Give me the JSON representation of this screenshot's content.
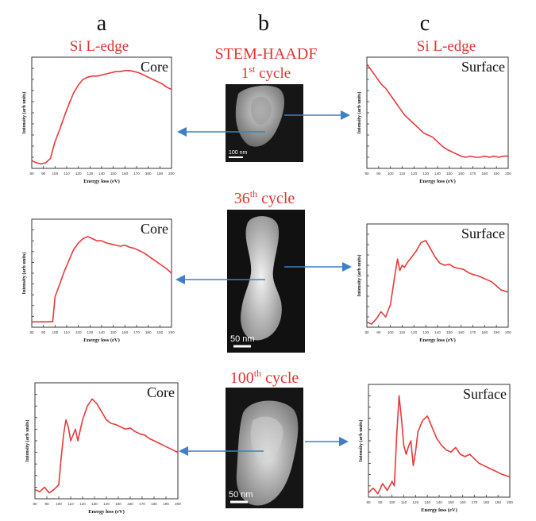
{
  "header": {
    "col_a_letter": "a",
    "col_b_letter": "b",
    "col_c_letter": "c",
    "col_a_title": "Si L-edge",
    "col_b_title": "STEM-HAADF",
    "col_c_title": "Si L-edge"
  },
  "cycles": [
    {
      "number": "1",
      "suffix": "st",
      "label": " cycle",
      "scale_text": "100 nm"
    },
    {
      "number": "36",
      "suffix": "th",
      "label": " cycle",
      "scale_text": "50 nm"
    },
    {
      "number": "100",
      "suffix": "th",
      "label": " cycle",
      "scale_text": "50 nm"
    }
  ],
  "colors": {
    "spectrum": "#e8393a",
    "title_red": "#e23232",
    "arrow": "#3f7fc8",
    "axis": "#333333"
  },
  "chart_data": [
    {
      "type": "line",
      "panel": "a1",
      "title": "Core",
      "xlabel": "Energy loss (eV)",
      "ylabel": "Intensity (arb units)",
      "xlim": [
        80,
        200
      ],
      "ylim": [
        0,
        100
      ],
      "x_ticks": [
        80,
        90,
        100,
        110,
        120,
        130,
        140,
        150,
        160,
        170,
        180,
        190,
        200
      ],
      "x": [
        80,
        84,
        88,
        92,
        96,
        100,
        104,
        108,
        112,
        116,
        120,
        124,
        128,
        132,
        136,
        140,
        144,
        148,
        152,
        156,
        160,
        164,
        168,
        172,
        176,
        180,
        184,
        188,
        192,
        196,
        200
      ],
      "y": [
        7,
        5,
        4,
        5,
        9,
        24,
        35,
        47,
        58,
        68,
        75,
        80,
        82,
        83,
        83,
        84,
        85,
        86,
        87,
        87,
        88,
        88,
        87,
        86,
        84,
        82,
        80,
        78,
        76,
        73,
        71
      ]
    },
    {
      "type": "line",
      "panel": "c1",
      "title": "Surface",
      "xlabel": "Energy loss (eV)",
      "ylabel": "Intensity (arb units)",
      "xlim": [
        80,
        200
      ],
      "ylim": [
        0,
        100
      ],
      "x_ticks": [
        80,
        90,
        100,
        110,
        120,
        130,
        140,
        150,
        160,
        170,
        180,
        190,
        200
      ],
      "x": [
        80,
        84,
        88,
        92,
        96,
        100,
        104,
        108,
        112,
        116,
        120,
        124,
        128,
        132,
        136,
        140,
        144,
        148,
        152,
        156,
        160,
        164,
        168,
        172,
        176,
        180,
        184,
        188,
        192,
        196,
        200
      ],
      "y": [
        94,
        88,
        82,
        76,
        72,
        66,
        60,
        54,
        48,
        44,
        40,
        36,
        32,
        30,
        28,
        24,
        20,
        17,
        15,
        13,
        11,
        10,
        11,
        10,
        10,
        11,
        10,
        11,
        10,
        11,
        11
      ]
    },
    {
      "type": "line",
      "panel": "a2",
      "title": "Core",
      "xlabel": "Energy loss (eV)",
      "ylabel": "Intensity (arb units)",
      "xlim": [
        80,
        200
      ],
      "ylim": [
        0,
        100
      ],
      "x_ticks": [
        80,
        90,
        100,
        110,
        120,
        130,
        140,
        150,
        160,
        170,
        180,
        190,
        200
      ],
      "x": [
        80,
        84,
        88,
        92,
        96,
        98,
        100,
        104,
        108,
        112,
        116,
        120,
        124,
        128,
        132,
        136,
        140,
        144,
        148,
        152,
        156,
        160,
        164,
        168,
        172,
        176,
        180,
        184,
        188,
        192,
        196,
        200
      ],
      "y": [
        5,
        5,
        5,
        5,
        5,
        5,
        28,
        40,
        52,
        62,
        72,
        78,
        82,
        84,
        82,
        80,
        80,
        78,
        77,
        76,
        75,
        76,
        74,
        73,
        71,
        69,
        66,
        63,
        60,
        57,
        54,
        50
      ]
    },
    {
      "type": "line",
      "panel": "c2",
      "title": "Surface",
      "xlabel": "Energy loss (eV)",
      "ylabel": "Intensity (arb units)",
      "xlim": [
        80,
        200
      ],
      "ylim": [
        0,
        100
      ],
      "x_ticks": [
        80,
        90,
        100,
        110,
        120,
        130,
        140,
        150,
        160,
        170,
        180,
        190,
        200
      ],
      "x": [
        80,
        84,
        88,
        92,
        96,
        100,
        104,
        106,
        108,
        110,
        112,
        114,
        118,
        122,
        126,
        130,
        134,
        138,
        142,
        146,
        150,
        154,
        158,
        162,
        166,
        170,
        174,
        178,
        182,
        186,
        190,
        194,
        200
      ],
      "y": [
        5,
        3,
        8,
        15,
        10,
        22,
        52,
        66,
        55,
        60,
        58,
        62,
        68,
        74,
        82,
        84,
        76,
        68,
        62,
        60,
        61,
        58,
        57,
        56,
        53,
        51,
        50,
        48,
        46,
        44,
        40,
        36,
        34
      ]
    },
    {
      "type": "line",
      "panel": "a3",
      "title": "Core",
      "xlabel": "Energy loss (eV)",
      "ylabel": "Intensity (arb units)",
      "xlim": [
        80,
        200
      ],
      "ylim": [
        0,
        100
      ],
      "x_ticks": [
        80,
        90,
        100,
        110,
        120,
        130,
        140,
        150,
        160,
        170,
        180,
        190,
        200
      ],
      "x": [
        80,
        84,
        88,
        92,
        96,
        100,
        102,
        104,
        106,
        108,
        110,
        112,
        114,
        116,
        120,
        124,
        128,
        132,
        136,
        140,
        144,
        148,
        152,
        156,
        160,
        164,
        168,
        172,
        176,
        180,
        184,
        188,
        192,
        196,
        200
      ],
      "y": [
        8,
        6,
        10,
        5,
        8,
        12,
        35,
        55,
        68,
        62,
        50,
        55,
        60,
        50,
        68,
        80,
        86,
        82,
        75,
        68,
        65,
        64,
        62,
        60,
        61,
        58,
        56,
        55,
        52,
        50,
        48,
        46,
        44,
        42,
        40
      ]
    },
    {
      "type": "line",
      "panel": "c3",
      "title": "Surface",
      "xlabel": "Energy loss (eV)",
      "ylabel": "Intensity (arb units)",
      "xlim": [
        80,
        200
      ],
      "ylim": [
        0,
        100
      ],
      "x_ticks": [
        80,
        90,
        100,
        110,
        120,
        130,
        140,
        150,
        160,
        170,
        180,
        190,
        200
      ],
      "x": [
        80,
        84,
        88,
        92,
        96,
        100,
        102,
        104,
        106,
        108,
        110,
        112,
        114,
        116,
        118,
        120,
        122,
        126,
        130,
        134,
        138,
        142,
        146,
        150,
        154,
        158,
        162,
        166,
        170,
        174,
        178,
        182,
        186,
        190,
        194,
        200
      ],
      "y": [
        4,
        8,
        3,
        12,
        6,
        14,
        10,
        55,
        90,
        70,
        46,
        38,
        45,
        50,
        28,
        40,
        58,
        68,
        72,
        62,
        52,
        46,
        42,
        40,
        44,
        38,
        36,
        38,
        34,
        30,
        28,
        26,
        24,
        22,
        20,
        18
      ]
    }
  ]
}
